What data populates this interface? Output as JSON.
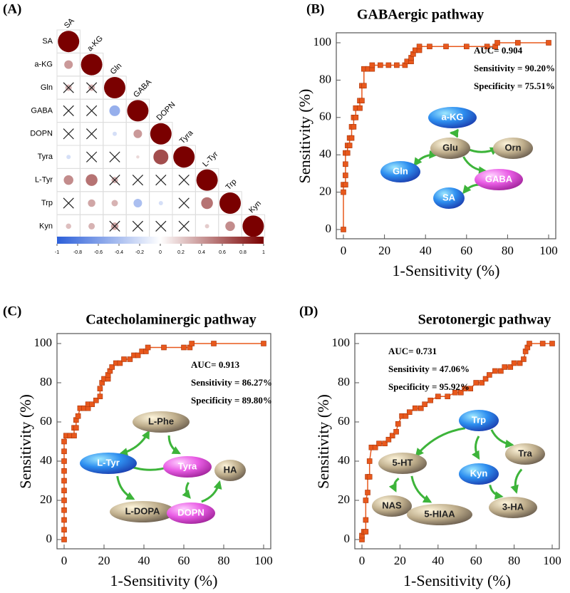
{
  "chart_data": [
    {
      "type": "corrplot",
      "panel": "(A)",
      "labels": [
        "SA",
        "a-KG",
        "Gln",
        "GABA",
        "DOPN",
        "Tyra",
        "L-Tyr",
        "Trp",
        "Kyn"
      ],
      "matrix": [
        [
          1
        ],
        [
          0.4,
          1
        ],
        [
          0.3,
          0.3,
          1
        ],
        [
          0,
          0,
          -0.5,
          1
        ],
        [
          0,
          0,
          -0.2,
          0.4,
          1
        ],
        [
          -0.2,
          0,
          0,
          0.15,
          0.7,
          1
        ],
        [
          0.45,
          0.55,
          0.3,
          0,
          0,
          0,
          1
        ],
        [
          0,
          0.35,
          0.3,
          -0.4,
          -0.2,
          0,
          0.55,
          1
        ],
        [
          0.25,
          0.3,
          0.35,
          0,
          0,
          0,
          0.2,
          0.45,
          1
        ]
      ],
      "significant": [
        [
          true
        ],
        [
          true,
          true
        ],
        [
          false,
          false,
          true
        ],
        [
          false,
          false,
          true,
          true
        ],
        [
          false,
          false,
          true,
          true,
          true
        ],
        [
          true,
          false,
          false,
          true,
          true,
          true
        ],
        [
          true,
          true,
          false,
          false,
          false,
          false,
          true
        ],
        [
          false,
          true,
          true,
          true,
          true,
          false,
          true,
          true
        ],
        [
          true,
          true,
          false,
          false,
          false,
          false,
          true,
          true,
          true
        ]
      ],
      "colors": [
        "#2c5fd9",
        "#ffffff",
        "#7a0000"
      ],
      "clim": [
        -1,
        1
      ],
      "cticks": [
        -1,
        -0.8,
        -0.6,
        -0.4,
        -0.2,
        0,
        0.2,
        0.4,
        0.6,
        0.8,
        1
      ]
    },
    {
      "type": "roc",
      "panel": "(B)",
      "title": "GABAergic pathway",
      "xlabel": "1-Sensitivity (%)",
      "ylabel": "Sensitivity (%)",
      "color": "#e8581c",
      "x": [
        0,
        0,
        0,
        1,
        1,
        1,
        1,
        2,
        2,
        3,
        3,
        4,
        4,
        5,
        5,
        6,
        6,
        8,
        8,
        9,
        9,
        10,
        10,
        12,
        14,
        14,
        18,
        22,
        26,
        30,
        31,
        33,
        33,
        34,
        35,
        37,
        37,
        42,
        50,
        60,
        70,
        74,
        75,
        85,
        100
      ],
      "values": [
        0,
        20,
        24,
        24,
        29,
        35,
        41,
        41,
        45,
        45,
        49,
        49,
        55,
        55,
        60,
        60,
        65,
        65,
        69,
        69,
        77,
        77,
        86,
        86,
        86,
        88,
        88,
        88,
        88,
        88,
        90,
        90,
        92,
        94,
        96,
        96,
        98,
        98,
        98,
        98,
        98,
        98,
        100,
        100,
        100
      ],
      "xlim": [
        0,
        100
      ],
      "ylim": [
        0,
        100
      ],
      "xticks": [
        0,
        20,
        40,
        60,
        80,
        100
      ],
      "yticks": [
        0,
        20,
        40,
        60,
        80,
        100
      ],
      "annotations": [
        "AUC= 0.904",
        "Sensitivity = 90.20%",
        "Specificity = 75.51%"
      ],
      "nodes": [
        {
          "label": "a-KG",
          "color": "blue"
        },
        {
          "label": "Glu",
          "color": "tan"
        },
        {
          "label": "Orn",
          "color": "tan"
        },
        {
          "label": "Gln",
          "color": "blue"
        },
        {
          "label": "GABA",
          "color": "pink"
        },
        {
          "label": "SA",
          "color": "blue"
        }
      ]
    },
    {
      "type": "roc",
      "panel": "(C)",
      "title": "Catecholaminergic pathway",
      "xlabel": "1-Sensitivity (%)",
      "ylabel": "Sensitivity (%)",
      "color": "#e8581c",
      "x": [
        0,
        0,
        0,
        0,
        0,
        0,
        0,
        0,
        0,
        0,
        0,
        1,
        3,
        5,
        5,
        6,
        6,
        7,
        8,
        10,
        12,
        12,
        14,
        16,
        18,
        18,
        19,
        20,
        22,
        22,
        23,
        24,
        26,
        28,
        30,
        33,
        35,
        37,
        39,
        41,
        42,
        50,
        60,
        63,
        64,
        75,
        100
      ],
      "values": [
        0,
        5,
        10,
        15,
        20,
        25,
        30,
        35,
        40,
        45,
        50,
        53,
        53,
        53,
        57,
        57,
        61,
        63,
        67,
        67,
        67,
        69,
        69,
        71,
        73,
        77,
        80,
        82,
        82,
        84,
        86,
        88,
        90,
        90,
        92,
        92,
        94,
        94,
        96,
        96,
        98,
        98,
        98,
        98,
        100,
        100,
        100
      ],
      "xlim": [
        0,
        100
      ],
      "ylim": [
        0,
        100
      ],
      "xticks": [
        0,
        20,
        40,
        60,
        80,
        100
      ],
      "yticks": [
        0,
        20,
        40,
        60,
        80,
        100
      ],
      "annotations": [
        "AUC= 0.913",
        "Sensitivity = 86.27%",
        "Specificity = 89.80%"
      ],
      "nodes": [
        {
          "label": "L-Phe",
          "color": "tan"
        },
        {
          "label": "L-Tyr",
          "color": "blue"
        },
        {
          "label": "Tyra",
          "color": "pink"
        },
        {
          "label": "HA",
          "color": "tan"
        },
        {
          "label": "L-DOPA",
          "color": "tan"
        },
        {
          "label": "DOPN",
          "color": "pink"
        }
      ]
    },
    {
      "type": "roc",
      "panel": "(D)",
      "title": "Serotonergic pathway",
      "xlabel": "1-Sensitivity (%)",
      "ylabel": "Sensitivity (%)",
      "color": "#e8581c",
      "x": [
        0,
        0,
        1,
        2,
        2,
        2,
        3,
        3,
        4,
        4,
        5,
        7,
        9,
        12,
        14,
        16,
        18,
        19,
        21,
        23,
        25,
        28,
        31,
        33,
        36,
        40,
        45,
        49,
        52,
        54,
        57,
        60,
        63,
        65,
        67,
        70,
        73,
        75,
        78,
        80,
        83,
        85,
        86,
        87,
        88,
        95,
        100
      ],
      "values": [
        0,
        2,
        4,
        4,
        10,
        20,
        24,
        32,
        32,
        40,
        47,
        47,
        49,
        49,
        51,
        53,
        55,
        59,
        63,
        63,
        65,
        67,
        67,
        69,
        71,
        73,
        73,
        75,
        75,
        77,
        77,
        80,
        80,
        82,
        84,
        86,
        86,
        88,
        88,
        90,
        90,
        92,
        96,
        98,
        100,
        100,
        100
      ],
      "xlim": [
        0,
        100
      ],
      "ylim": [
        0,
        100
      ],
      "xticks": [
        0,
        20,
        40,
        60,
        80,
        100
      ],
      "yticks": [
        0,
        20,
        40,
        60,
        80,
        100
      ],
      "annotations": [
        "AUC= 0.731",
        "Sensitivity = 47.06%",
        "Specificity = 95.92%"
      ],
      "nodes": [
        {
          "label": "Trp",
          "color": "blue"
        },
        {
          "label": "5-HT",
          "color": "tan"
        },
        {
          "label": "Tra",
          "color": "tan"
        },
        {
          "label": "Kyn",
          "color": "blue"
        },
        {
          "label": "NAS",
          "color": "tan"
        },
        {
          "label": "5-HIAA",
          "color": "tan"
        },
        {
          "label": "3-HA",
          "color": "tan"
        }
      ]
    }
  ]
}
